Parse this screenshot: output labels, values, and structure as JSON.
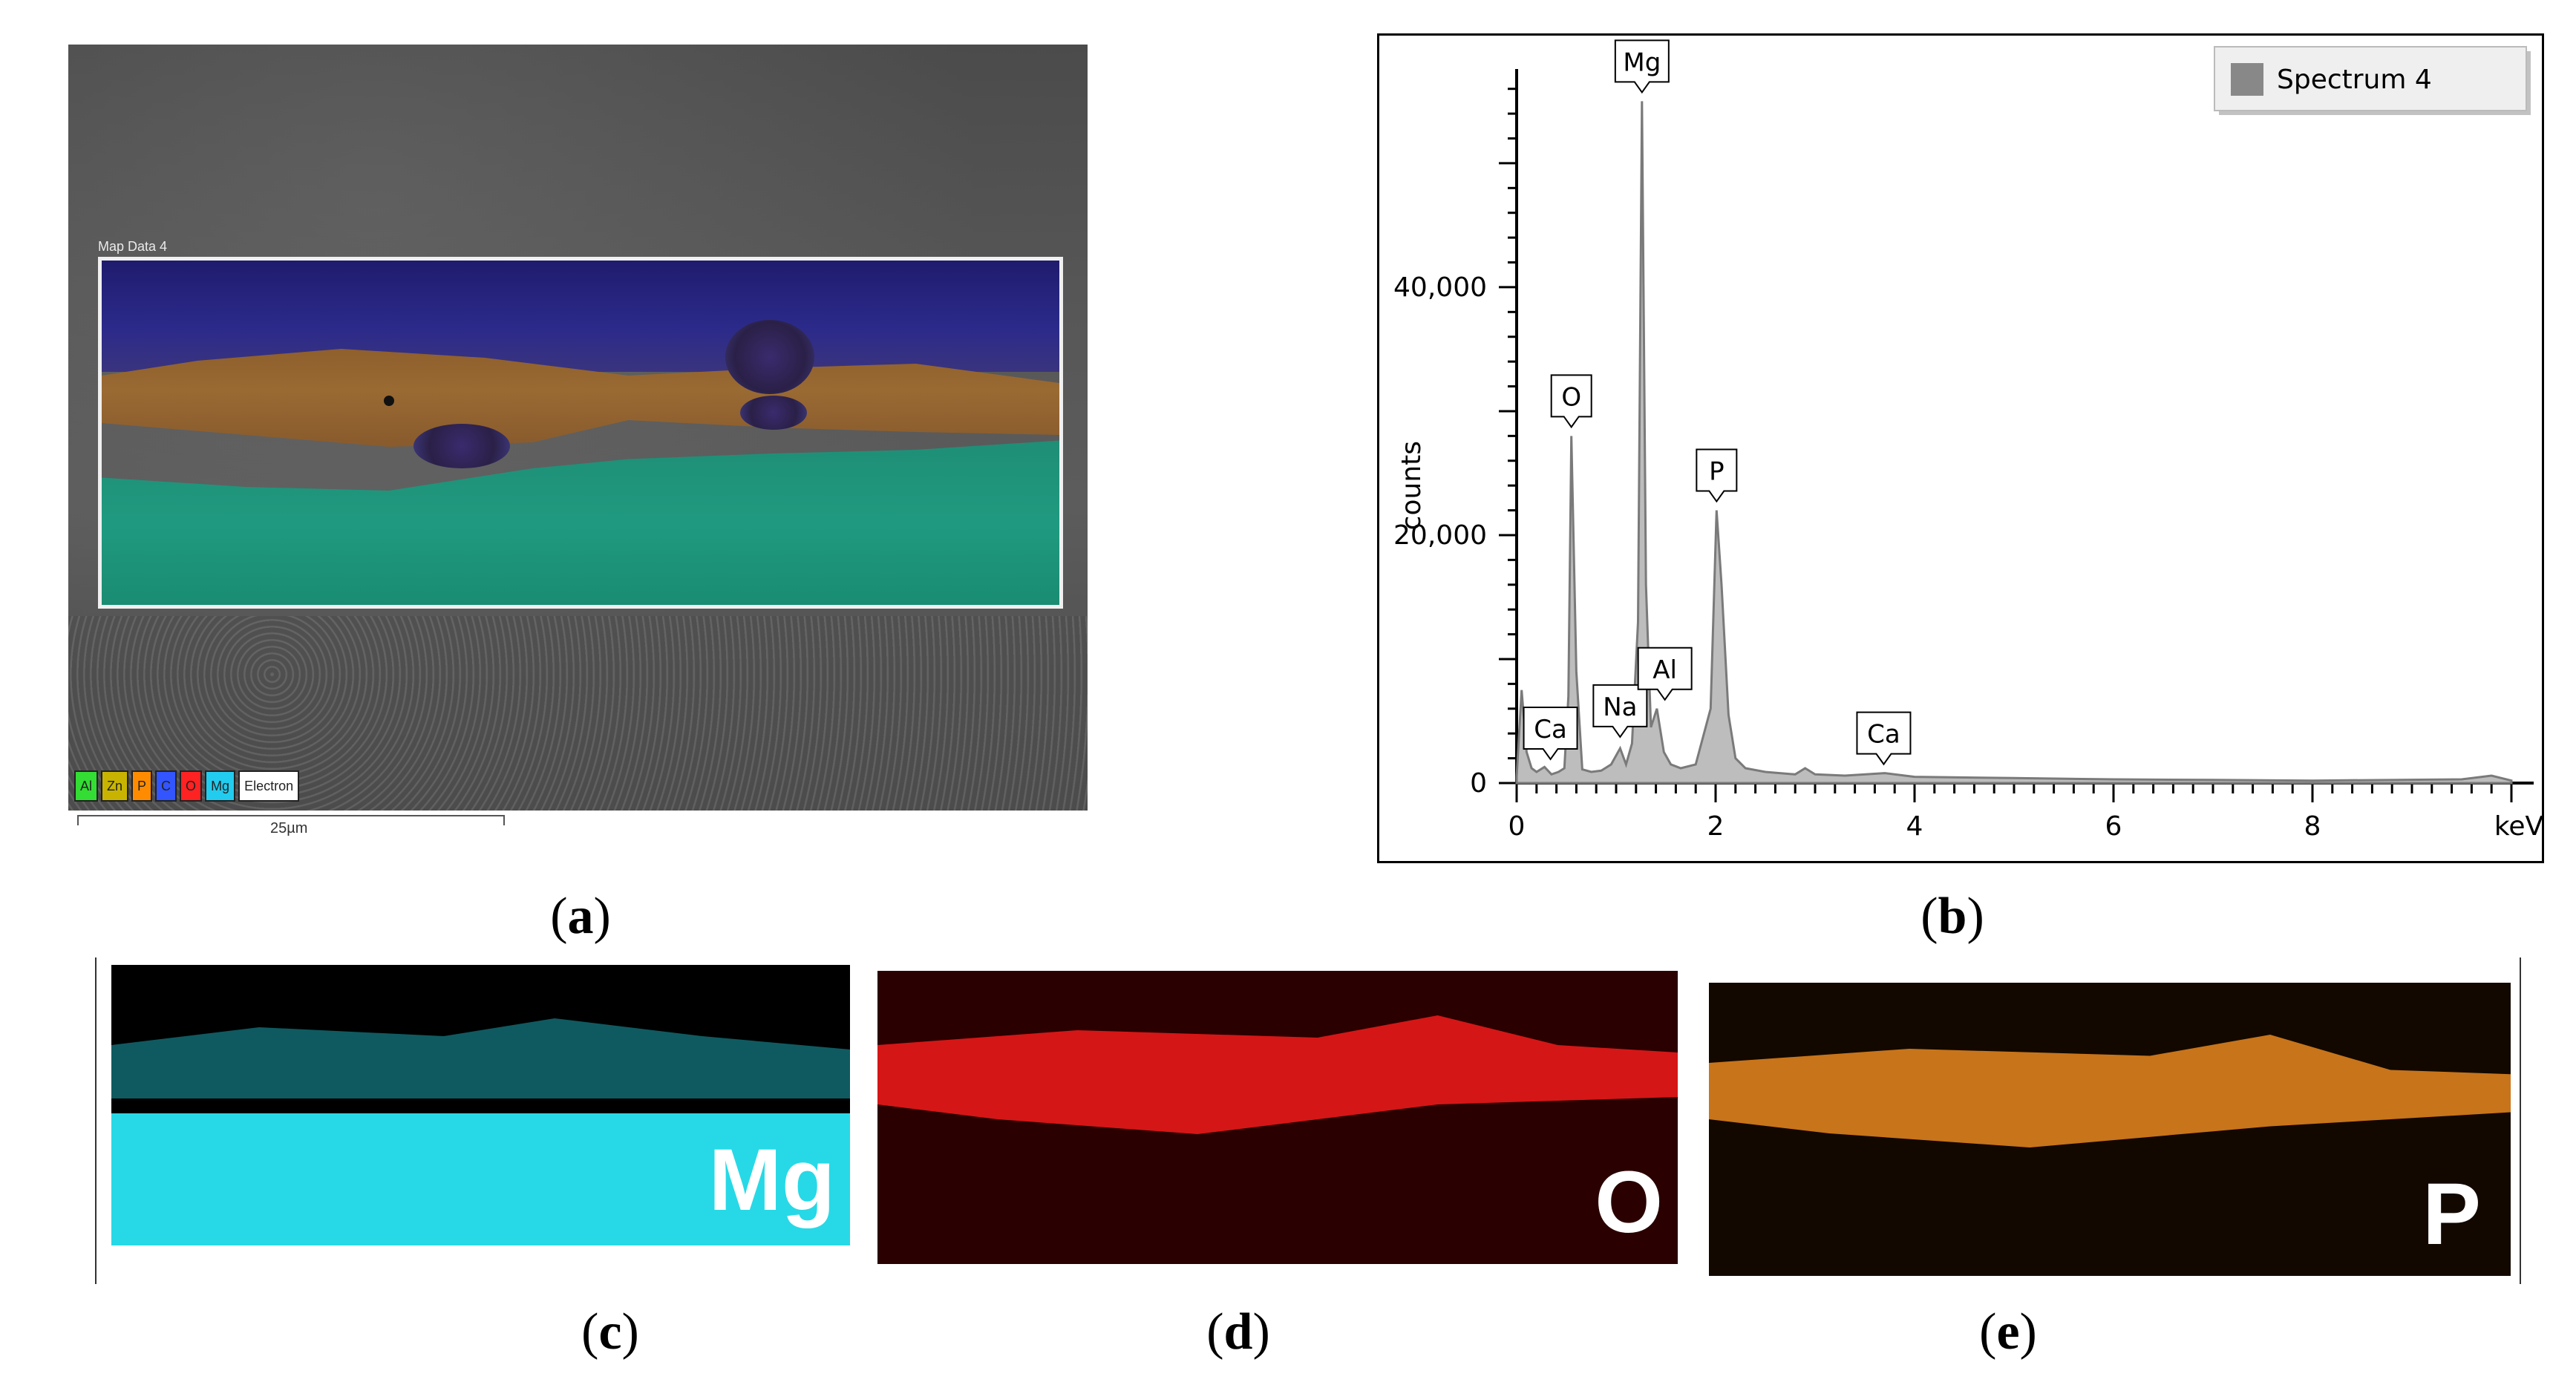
{
  "panel_a": {
    "map_title": "Map Data 4",
    "legend": [
      {
        "label": "Al",
        "color": "#33dd33"
      },
      {
        "label": "Zn",
        "color": "#c8b400"
      },
      {
        "label": "P",
        "color": "#ff8c00"
      },
      {
        "label": "C",
        "color": "#3355ff"
      },
      {
        "label": "O",
        "color": "#ff2222"
      },
      {
        "label": "Mg",
        "color": "#22ccee"
      },
      {
        "label": "Electron",
        "color": "#ffffff"
      }
    ],
    "scale_label": "25µm",
    "caption_letter": "a"
  },
  "panel_b": {
    "legend_label": "Spectrum 4",
    "caption_letter": "b"
  },
  "panel_c": {
    "element": "Mg",
    "caption_letter": "c",
    "color": "#27d9e6"
  },
  "panel_d": {
    "element": "O",
    "caption_letter": "d",
    "color": "#e01818"
  },
  "panel_e": {
    "element": "P",
    "caption_letter": "e",
    "color": "#e58a18"
  },
  "chart_data": {
    "type": "line",
    "title": "",
    "xlabel": "keV",
    "ylabel": "counts",
    "xlim": [
      0,
      10
    ],
    "ylim": [
      0,
      57000
    ],
    "x_ticks": [
      0,
      2,
      4,
      6,
      8
    ],
    "y_ticks": [
      0,
      20000,
      40000
    ],
    "y_tick_labels": [
      "0",
      "20,000",
      "40,000"
    ],
    "legend": "top-right",
    "series": [
      {
        "name": "Spectrum 4",
        "x": [
          0.0,
          0.05,
          0.1,
          0.15,
          0.2,
          0.28,
          0.35,
          0.42,
          0.48,
          0.52,
          0.55,
          0.6,
          0.66,
          0.75,
          0.85,
          0.95,
          1.04,
          1.1,
          1.16,
          1.22,
          1.26,
          1.3,
          1.35,
          1.41,
          1.48,
          1.55,
          1.65,
          1.8,
          1.95,
          2.01,
          2.06,
          2.13,
          2.2,
          2.3,
          2.5,
          2.8,
          2.9,
          3.0,
          3.3,
          3.7,
          4.0,
          5.0,
          6.0,
          7.0,
          8.0,
          9.5,
          9.8,
          10.0
        ],
        "values": [
          500,
          7500,
          2500,
          1200,
          900,
          1300,
          700,
          900,
          1200,
          7000,
          28000,
          9000,
          1100,
          900,
          1000,
          1500,
          2800,
          1500,
          3200,
          13000,
          55000,
          16000,
          4500,
          6000,
          2500,
          1500,
          1200,
          1500,
          6000,
          22000,
          16000,
          5500,
          2000,
          1200,
          900,
          700,
          1200,
          700,
          600,
          800,
          500,
          400,
          300,
          250,
          200,
          300,
          600,
          200
        ]
      }
    ],
    "annotations": [
      {
        "label": "Ca",
        "x": 0.34,
        "y": 1200
      },
      {
        "label": "O",
        "x": 0.55,
        "y": 28000
      },
      {
        "label": "Na",
        "x": 1.04,
        "y": 3000
      },
      {
        "label": "Mg",
        "x": 1.26,
        "y": 55000
      },
      {
        "label": "Al",
        "x": 1.49,
        "y": 6000
      },
      {
        "label": "P",
        "x": 2.01,
        "y": 22000
      },
      {
        "label": "Ca",
        "x": 3.69,
        "y": 800
      }
    ]
  }
}
